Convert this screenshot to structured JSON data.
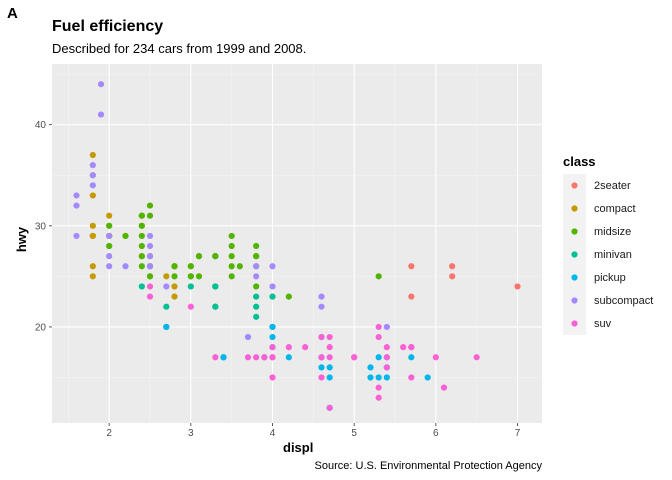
{
  "figure_tag": "A",
  "chart_data": {
    "type": "scatter",
    "title": "Fuel efficiency",
    "subtitle": "Described for 234 cars from 1999 and 2008.",
    "caption": "Source: U.S. Environmental Protection Agency",
    "xlabel": "displ",
    "ylabel": "hwy",
    "xlim": [
      1.3,
      7.3
    ],
    "ylim": [
      10.5,
      46
    ],
    "x_ticks": [
      2,
      3,
      4,
      5,
      6,
      7
    ],
    "y_ticks": [
      20,
      30,
      40
    ],
    "grid": true,
    "legend": {
      "title": "class",
      "position": "right"
    },
    "series": [
      {
        "name": "2seater",
        "color": "#F8766D",
        "points": [
          [
            5.7,
            26
          ],
          [
            5.7,
            23
          ],
          [
            6.2,
            26
          ],
          [
            6.2,
            25
          ],
          [
            7.0,
            24
          ]
        ]
      },
      {
        "name": "compact",
        "color": "#C49A00",
        "points": [
          [
            1.8,
            29
          ],
          [
            1.8,
            29
          ],
          [
            2.0,
            31
          ],
          [
            2.0,
            30
          ],
          [
            2.8,
            26
          ],
          [
            2.8,
            26
          ],
          [
            3.1,
            27
          ],
          [
            1.8,
            26
          ],
          [
            1.8,
            25
          ],
          [
            2.0,
            28
          ],
          [
            2.4,
            27
          ],
          [
            2.4,
            30
          ],
          [
            2.5,
            26
          ],
          [
            2.5,
            27
          ],
          [
            2.2,
            29
          ],
          [
            2.4,
            31
          ],
          [
            3.0,
            26
          ],
          [
            3.3,
            27
          ],
          [
            2.8,
            23
          ],
          [
            2.8,
            24
          ],
          [
            2.4,
            31
          ],
          [
            1.8,
            35
          ],
          [
            1.8,
            37
          ],
          [
            1.8,
            33
          ],
          [
            1.8,
            30
          ],
          [
            2.0,
            29
          ],
          [
            2.5,
            25
          ],
          [
            2.7,
            25
          ]
        ]
      },
      {
        "name": "midsize",
        "color": "#53B400",
        "points": [
          [
            2.4,
            31
          ],
          [
            2.5,
            31
          ],
          [
            2.5,
            32
          ],
          [
            3.0,
            25
          ],
          [
            3.1,
            25
          ],
          [
            3.3,
            27
          ],
          [
            2.0,
            28
          ],
          [
            2.8,
            26
          ],
          [
            3.3,
            27
          ],
          [
            3.8,
            28
          ],
          [
            3.5,
            29
          ],
          [
            3.5,
            28
          ],
          [
            2.0,
            29
          ],
          [
            2.4,
            30
          ],
          [
            2.5,
            26
          ],
          [
            2.4,
            27
          ],
          [
            3.5,
            26
          ],
          [
            2.4,
            29
          ],
          [
            2.8,
            25
          ],
          [
            3.1,
            27
          ],
          [
            2.0,
            29
          ],
          [
            3.6,
            26
          ],
          [
            3.8,
            24
          ],
          [
            3.8,
            26
          ],
          [
            5.3,
            25
          ],
          [
            2.5,
            25
          ],
          [
            3.5,
            25
          ],
          [
            2.4,
            28
          ],
          [
            3.8,
            27
          ],
          [
            4.2,
            23
          ],
          [
            3.0,
            26
          ],
          [
            3.5,
            27
          ],
          [
            2.4,
            26
          ],
          [
            3.0,
            25
          ],
          [
            3.8,
            27
          ],
          [
            2.0,
            30
          ],
          [
            2.2,
            29
          ]
        ]
      },
      {
        "name": "minivan",
        "color": "#00C094",
        "points": [
          [
            2.4,
            24
          ],
          [
            3.0,
            24
          ],
          [
            3.3,
            22
          ],
          [
            3.3,
            22
          ],
          [
            3.3,
            24
          ],
          [
            3.8,
            23
          ],
          [
            3.8,
            22
          ],
          [
            3.8,
            21
          ],
          [
            4.0,
            23
          ],
          [
            3.3,
            24
          ],
          [
            2.7,
            22
          ]
        ]
      },
      {
        "name": "pickup",
        "color": "#00B6EB",
        "points": [
          [
            2.7,
            20
          ],
          [
            2.7,
            20
          ],
          [
            3.4,
            17
          ],
          [
            3.4,
            17
          ],
          [
            3.7,
            19
          ],
          [
            4.0,
            18
          ],
          [
            4.0,
            20
          ],
          [
            4.2,
            17
          ],
          [
            4.6,
            17
          ],
          [
            4.6,
            16
          ],
          [
            4.7,
            12
          ],
          [
            4.7,
            16
          ],
          [
            4.7,
            15
          ],
          [
            5.2,
            15
          ],
          [
            5.2,
            16
          ],
          [
            5.3,
            17
          ],
          [
            5.4,
            16
          ],
          [
            5.4,
            17
          ],
          [
            5.7,
            17
          ],
          [
            5.9,
            15
          ],
          [
            4.0,
            19
          ],
          [
            4.0,
            20
          ],
          [
            4.6,
            19
          ],
          [
            5.4,
            15
          ],
          [
            5.3,
            15
          ],
          [
            4.7,
            12
          ],
          [
            3.9,
            17
          ]
        ]
      },
      {
        "name": "subcompact",
        "color": "#A58AFF",
        "points": [
          [
            1.6,
            33
          ],
          [
            1.6,
            32
          ],
          [
            1.6,
            29
          ],
          [
            1.8,
            34
          ],
          [
            1.8,
            36
          ],
          [
            1.8,
            35
          ],
          [
            1.9,
            44
          ],
          [
            1.9,
            41
          ],
          [
            2.0,
            29
          ],
          [
            2.0,
            26
          ],
          [
            2.0,
            27
          ],
          [
            2.2,
            26
          ],
          [
            2.5,
            29
          ],
          [
            2.5,
            28
          ],
          [
            2.5,
            27
          ],
          [
            2.5,
            26
          ],
          [
            2.7,
            24
          ],
          [
            3.8,
            26
          ],
          [
            3.8,
            25
          ],
          [
            4.0,
            24
          ],
          [
            4.6,
            23
          ],
          [
            4.6,
            22
          ],
          [
            5.4,
            20
          ],
          [
            3.7,
            19
          ],
          [
            4.0,
            26
          ]
        ]
      },
      {
        "name": "suv",
        "color": "#FB61D7",
        "points": [
          [
            4.0,
            17
          ],
          [
            4.0,
            17
          ],
          [
            4.6,
            19
          ],
          [
            4.7,
            19
          ],
          [
            5.3,
            20
          ],
          [
            5.3,
            19
          ],
          [
            5.4,
            18
          ],
          [
            5.7,
            18
          ],
          [
            6.5,
            17
          ],
          [
            3.0,
            22
          ],
          [
            3.7,
            17
          ],
          [
            3.9,
            17
          ],
          [
            4.7,
            12
          ],
          [
            4.7,
            18
          ],
          [
            5.7,
            18
          ],
          [
            6.1,
            14
          ],
          [
            5.3,
            13
          ],
          [
            5.4,
            17
          ],
          [
            4.0,
            15
          ],
          [
            4.6,
            15
          ],
          [
            5.0,
            17
          ],
          [
            4.2,
            18
          ],
          [
            4.4,
            18
          ],
          [
            5.6,
            18
          ],
          [
            5.4,
            16
          ],
          [
            5.7,
            15
          ],
          [
            6.0,
            17
          ],
          [
            2.5,
            23
          ],
          [
            2.5,
            24
          ],
          [
            3.3,
            17
          ],
          [
            4.0,
            18
          ],
          [
            4.6,
            17
          ],
          [
            4.7,
            17
          ],
          [
            5.0,
            17
          ],
          [
            5.3,
            14
          ],
          [
            5.7,
            18
          ],
          [
            3.8,
            17
          ]
        ]
      }
    ]
  }
}
